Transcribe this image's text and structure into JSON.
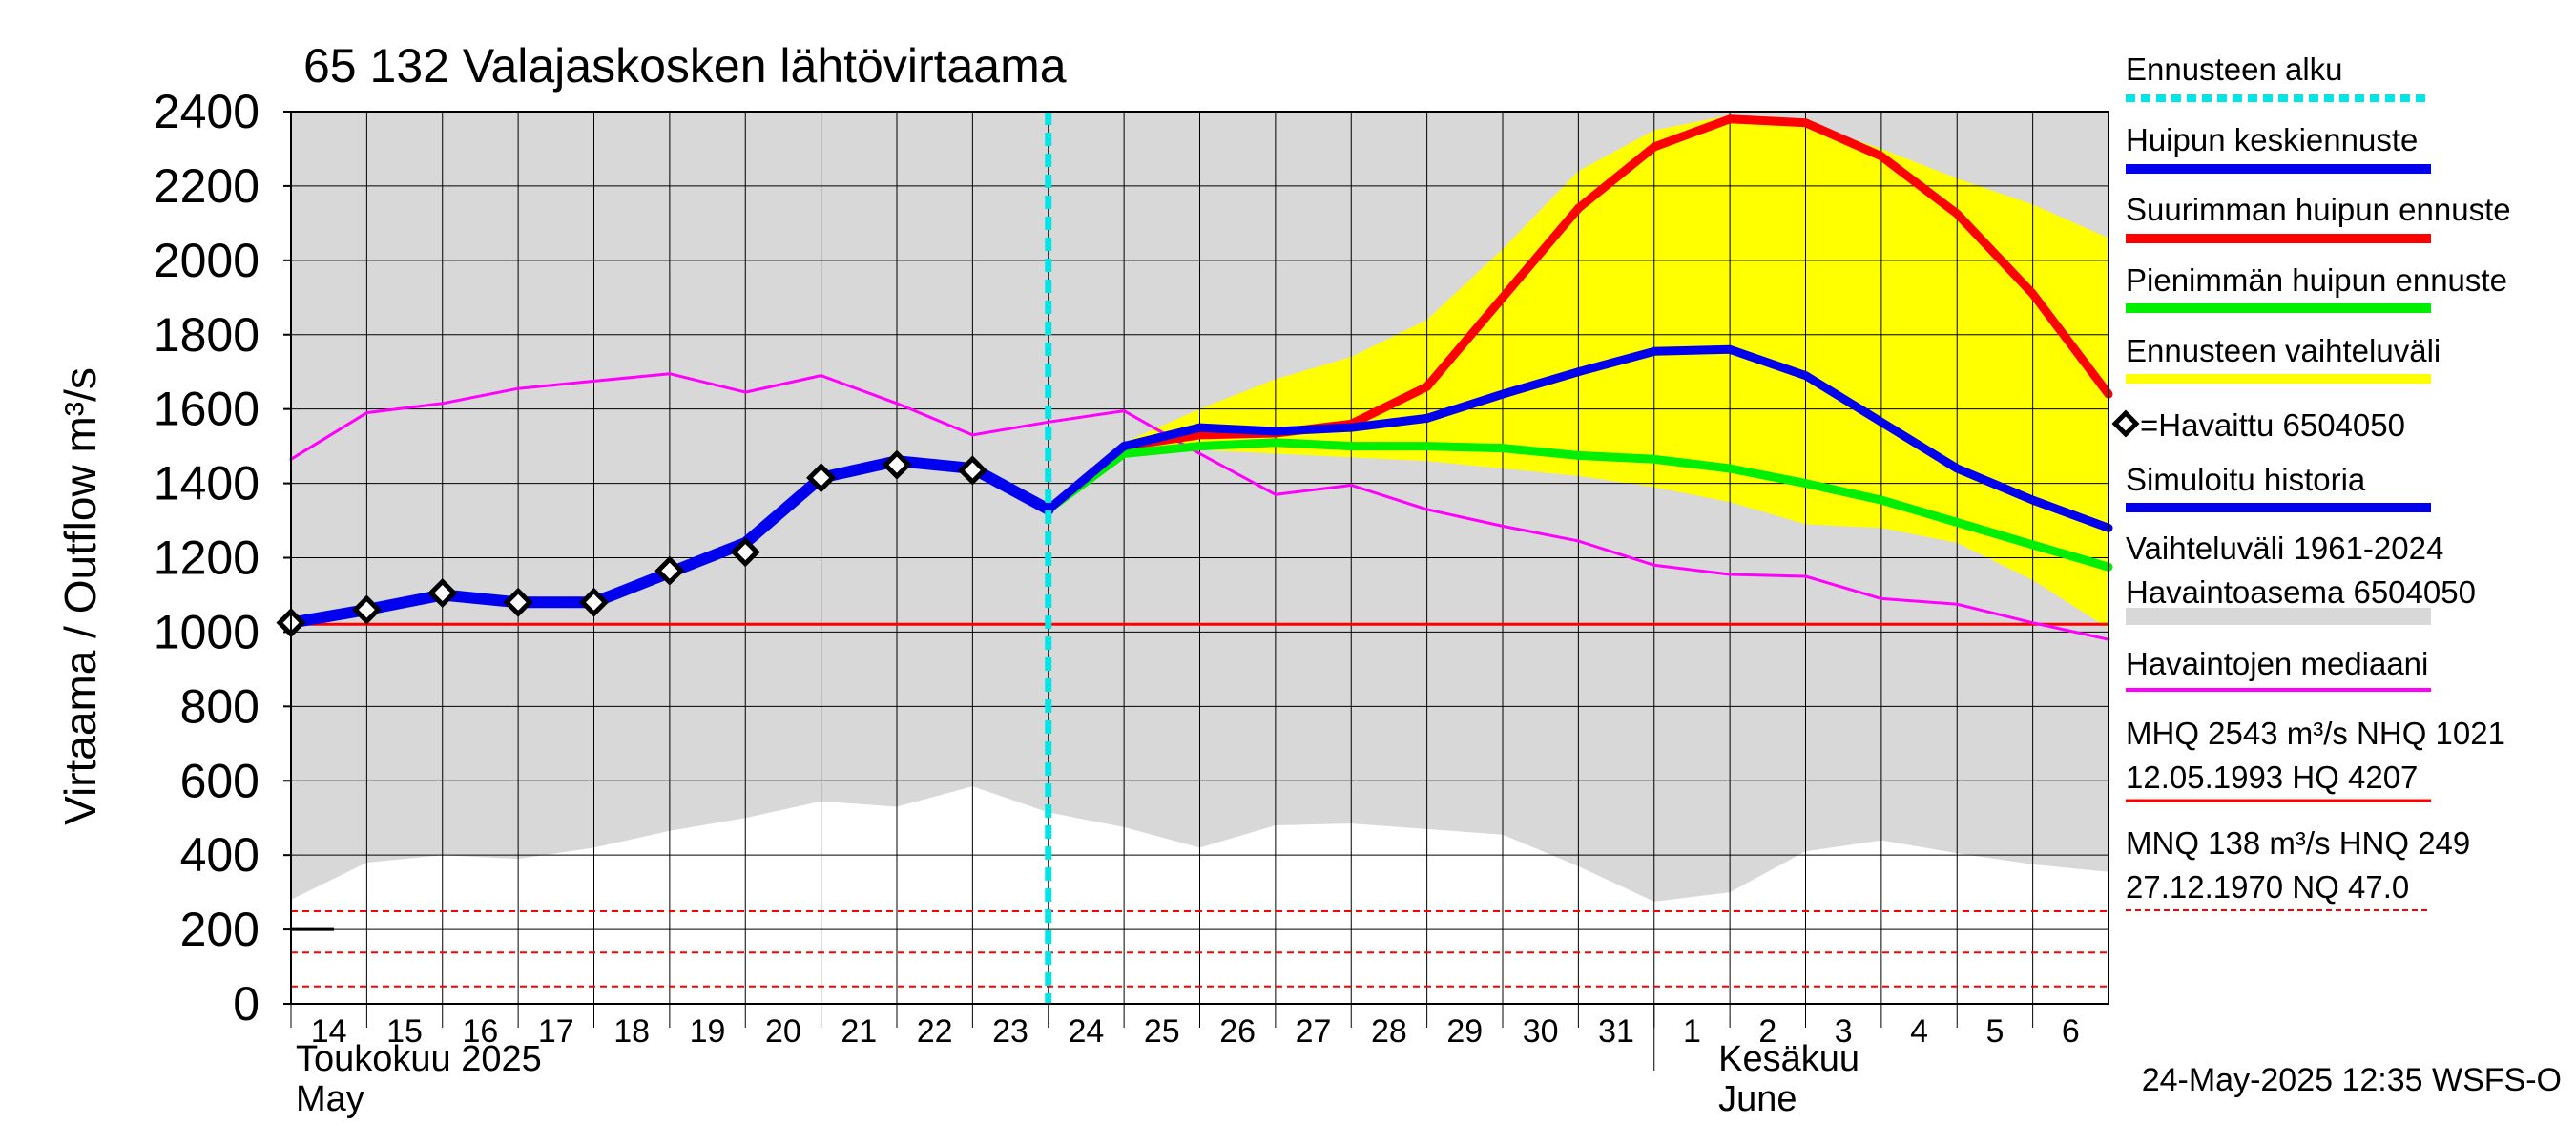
{
  "chart_data": {
    "type": "line",
    "title": "65 132 Valajaskosken lähtövirtaama",
    "ylabel": "Virtaama / Outflow    m³/s",
    "ylim": [
      0,
      2400
    ],
    "yticks": [
      0,
      200,
      400,
      600,
      800,
      1000,
      1200,
      1400,
      1600,
      1800,
      2000,
      2200,
      2400
    ],
    "x_days": [
      "14",
      "15",
      "16",
      "17",
      "18",
      "19",
      "20",
      "21",
      "22",
      "23",
      "24",
      "25",
      "26",
      "27",
      "28",
      "29",
      "30",
      "31",
      "1",
      "2",
      "3",
      "4",
      "5",
      "6"
    ],
    "month_labels": [
      {
        "fi": "Toukokuu  2025",
        "en": "May"
      },
      {
        "fi": "Kesäkuu",
        "en": "June"
      }
    ],
    "forecast_start_day": 10,
    "variation_range": {
      "name": "Vaihteluväli 1961-2024",
      "x": [
        0,
        1,
        2,
        3,
        4,
        5,
        6,
        7,
        8,
        9,
        10,
        11,
        12,
        13,
        14,
        15,
        16,
        17,
        18,
        19,
        20,
        21,
        22,
        23,
        24
      ],
      "low": [
        280,
        380,
        400,
        390,
        420,
        465,
        500,
        545,
        530,
        585,
        515,
        475,
        420,
        480,
        485,
        470,
        455,
        370,
        275,
        300,
        410,
        440,
        405,
        375,
        355
      ],
      "high": [
        2400,
        2400,
        2400,
        2400,
        2400,
        2400,
        2400,
        2400,
        2400,
        2400,
        2400,
        2400,
        2400,
        2400,
        2400,
        2400,
        2400,
        2400,
        2400,
        2400,
        2400,
        2400,
        2400,
        2400,
        2400
      ]
    },
    "forecast_band": {
      "name": "Ennusteen vaihteluväli",
      "x": [
        11,
        12,
        13,
        14,
        15,
        16,
        17,
        18,
        19,
        20,
        21,
        22,
        23,
        24
      ],
      "low": [
        1480,
        1490,
        1480,
        1470,
        1460,
        1440,
        1420,
        1390,
        1350,
        1290,
        1280,
        1240,
        1140,
        1010
      ],
      "high": [
        1510,
        1600,
        1680,
        1740,
        1840,
        2030,
        2240,
        2350,
        2390,
        2370,
        2300,
        2220,
        2150,
        2060
      ]
    },
    "series": [
      {
        "name": "Havaintojen mediaani",
        "color": "#ff00ff",
        "x": [
          0,
          1,
          2,
          3,
          4,
          5,
          6,
          7,
          8,
          9,
          10,
          11,
          12,
          13,
          14,
          15,
          16,
          17,
          18,
          19,
          20,
          21,
          22,
          23,
          24
        ],
        "values": [
          1465,
          1590,
          1615,
          1655,
          1675,
          1695,
          1645,
          1690,
          1615,
          1530,
          1565,
          1595,
          1480,
          1370,
          1395,
          1330,
          1285,
          1245,
          1180,
          1155,
          1150,
          1090,
          1075,
          1025,
          980
        ]
      },
      {
        "name": "Suurimman huipun ennuste",
        "color": "#ff0000",
        "x": [
          10,
          11,
          12,
          13,
          14,
          15,
          16,
          17,
          18,
          19,
          20,
          21,
          22,
          23,
          24
        ],
        "values": [
          1330,
          1500,
          1530,
          1535,
          1560,
          1660,
          1900,
          2140,
          2305,
          2380,
          2370,
          2280,
          2125,
          1910,
          1640
        ]
      },
      {
        "name": "Pienimmän huipun ennuste",
        "color": "#00ee00",
        "x": [
          10,
          11,
          12,
          13,
          14,
          15,
          16,
          17,
          18,
          19,
          20,
          21,
          22,
          23,
          24
        ],
        "values": [
          1330,
          1480,
          1500,
          1510,
          1500,
          1500,
          1495,
          1475,
          1465,
          1440,
          1400,
          1355,
          1295,
          1235,
          1175
        ]
      },
      {
        "name": "Huipun keskiennuste",
        "color": "#0000ee",
        "x": [
          10,
          11,
          12,
          13,
          14,
          15,
          16,
          17,
          18,
          19,
          20,
          21,
          22,
          23,
          24
        ],
        "values": [
          1330,
          1500,
          1550,
          1540,
          1550,
          1575,
          1640,
          1700,
          1755,
          1760,
          1690,
          1565,
          1440,
          1355,
          1280
        ]
      },
      {
        "name": "Simuloitu historia",
        "color": "#0000ee",
        "x": [
          0,
          1,
          2,
          3,
          4,
          5,
          6,
          7,
          8,
          9,
          10
        ],
        "values": [
          1025,
          1060,
          1100,
          1080,
          1080,
          1160,
          1240,
          1415,
          1460,
          1440,
          1330
        ]
      }
    ],
    "observed": {
      "name": "=Havaittu 6504050",
      "x": [
        0,
        1,
        2,
        3,
        4,
        5,
        6,
        7,
        8,
        9
      ],
      "values": [
        1025,
        1060,
        1105,
        1080,
        1080,
        1165,
        1215,
        1415,
        1450,
        1435
      ]
    },
    "reference_lines": [
      {
        "name": "NHQ",
        "value": 1021,
        "color": "#ff0000",
        "style": "solid"
      },
      {
        "name": "HNQ",
        "value": 249,
        "color": "#ff0000",
        "style": "dashed"
      },
      {
        "name": "MNQ",
        "value": 138,
        "color": "#ff0000",
        "style": "dashed"
      },
      {
        "name": "NQ",
        "value": 47,
        "color": "#ff0000",
        "style": "dashed"
      }
    ],
    "legend": [
      {
        "label": "Ennusteen alku",
        "color": "#00e5e5",
        "kind": "dashed"
      },
      {
        "label": "Huipun keskiennuste",
        "color": "#0000ee",
        "kind": "line"
      },
      {
        "label": "Suurimman huipun ennuste",
        "color": "#ff0000",
        "kind": "line"
      },
      {
        "label": "Pienimmän huipun ennuste",
        "color": "#00ee00",
        "kind": "line"
      },
      {
        "label": "Ennusteen vaihteluväli",
        "color": "#ffff00",
        "kind": "line"
      },
      {
        "label": "=Havaittu 6504050",
        "color": "#000000",
        "kind": "marker"
      },
      {
        "label": "Simuloitu historia",
        "color": "#0000ee",
        "kind": "line"
      },
      {
        "label": "Vaihteluväli 1961-2024",
        "label2": " Havaintoasema 6504050",
        "color": "#d8d8d8",
        "kind": "band"
      },
      {
        "label": "Havaintojen mediaani",
        "color": "#ff00ff",
        "kind": "thin"
      },
      {
        "label": "MHQ 2543 m³/s NHQ 1021",
        "label2": "12.05.1993 HQ 4207",
        "color": "#ff0000",
        "kind": "thinred"
      },
      {
        "label": "MNQ  138 m³/s HNQ  249",
        "label2": "27.12.1970 NQ 47.0",
        "color": "#ff0000",
        "kind": "dashedred"
      }
    ],
    "timestamp": "24-May-2025 12:35 WSFS-O",
    "colors": {
      "range_fill": "#d8d8d8",
      "forecast_fill": "#ffff00",
      "forecast_start": "#00e5e5",
      "grid": "#000000"
    }
  }
}
